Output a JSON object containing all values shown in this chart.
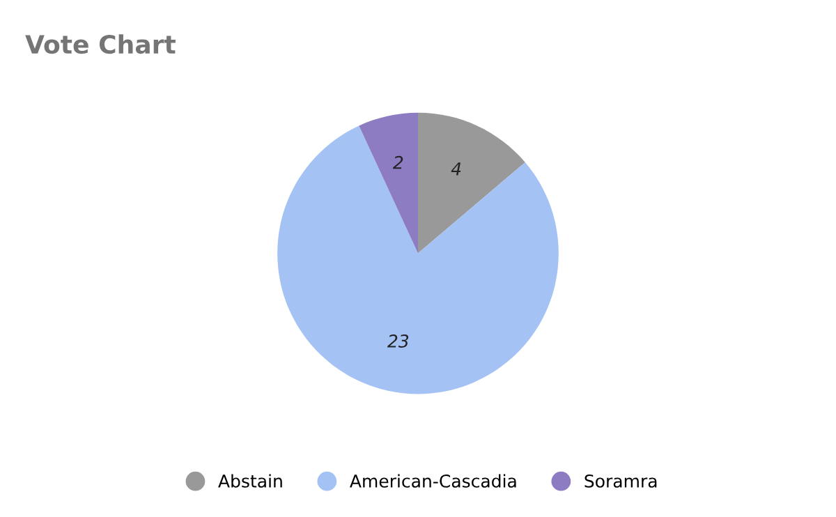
{
  "chart_data": {
    "type": "pie",
    "title": "Vote Chart",
    "categories": [
      "Abstain",
      "American-Cascadia",
      "Soramra"
    ],
    "values": [
      4,
      23,
      2
    ],
    "colors": [
      "#999999",
      "#a4c2f4",
      "#8e7cc3"
    ],
    "data_labels": true,
    "legend": "bottom"
  }
}
